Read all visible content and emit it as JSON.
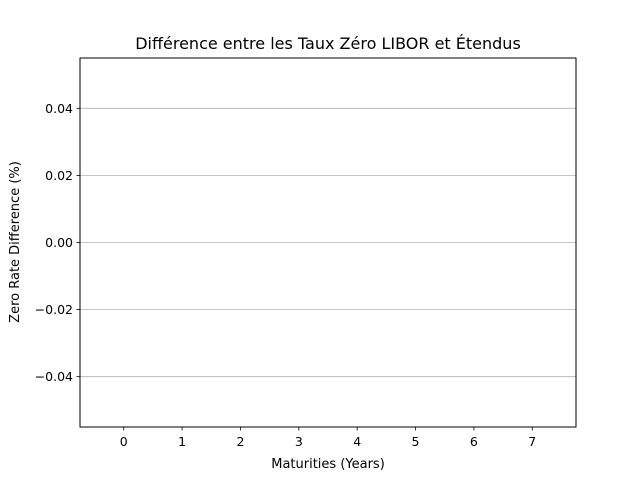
{
  "chart_data": {
    "type": "bar",
    "title": "Différence entre les Taux Zéro LIBOR et Étendus",
    "xlabel": "Maturities (Years)",
    "ylabel": "Zero Rate Difference (%)",
    "categories": [
      0,
      1,
      2,
      3,
      4,
      5,
      6,
      7
    ],
    "values": [
      0,
      0,
      0,
      0,
      0,
      0,
      0,
      0
    ],
    "x_ticks": [
      "0",
      "1",
      "2",
      "3",
      "4",
      "5",
      "6",
      "7"
    ],
    "y_ticks": [
      0.04,
      0.02,
      0.0,
      -0.02,
      -0.04
    ],
    "y_tick_labels": [
      "0.04",
      "0.02",
      "0.00",
      "−0.02",
      "−0.04"
    ],
    "xlim": [
      -0.75,
      7.75
    ],
    "ylim": [
      -0.055,
      0.055
    ],
    "grid": "y-major",
    "grid_color": "#b0b0b0",
    "axes_color": "#000000",
    "background": "#ffffff"
  }
}
